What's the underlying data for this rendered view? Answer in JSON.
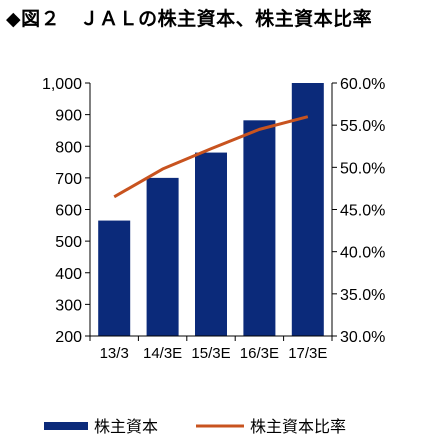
{
  "title": "◆図２　ＪＡＬの株主資本、株主資本比率",
  "chart_data": {
    "type": "bar",
    "categories": [
      "13/3",
      "14/3E",
      "15/3E",
      "16/3E",
      "17/3E"
    ],
    "series": [
      {
        "name": "株主資本",
        "type": "bar",
        "axis": "left",
        "values": [
          565,
          700,
          780,
          882,
          1000
        ],
        "color": "#0b2a7a"
      },
      {
        "name": "株主資本比率",
        "type": "line",
        "axis": "right",
        "values": [
          46.5,
          49.8,
          52.2,
          54.5,
          56.0
        ],
        "color": "#c8531f"
      }
    ],
    "y_left": {
      "min": 200,
      "max": 1000,
      "ticks": [
        200,
        300,
        400,
        500,
        600,
        700,
        800,
        900,
        1000
      ],
      "tick_labels": [
        "200",
        "300",
        "400",
        "500",
        "600",
        "700",
        "800",
        "900",
        "1,000"
      ]
    },
    "y_right": {
      "min": 30,
      "max": 60,
      "ticks": [
        30,
        35,
        40,
        45,
        50,
        55,
        60
      ],
      "tick_labels": [
        "30.0%",
        "35.0%",
        "40.0%",
        "45.0%",
        "50.0%",
        "55.0%",
        "60.0%"
      ]
    },
    "grid": false,
    "legend": "bottom"
  }
}
